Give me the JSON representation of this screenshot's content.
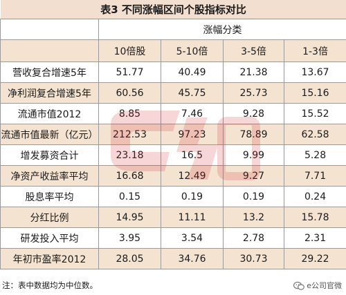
{
  "title": "表3 不同涨幅区间个股指标对比",
  "group_header": "涨幅分类",
  "columns": [
    "10倍股",
    "5-10倍",
    "3-5倍",
    "1-3倍"
  ],
  "rows": [
    {
      "label": "营收复合增速5年",
      "values": [
        "51.77",
        "40.49",
        "21.38",
        "13.67"
      ]
    },
    {
      "label": "净利润复合增速5年",
      "values": [
        "60.56",
        "45.75",
        "25.73",
        "15.16"
      ]
    },
    {
      "label": "流通市值2012",
      "values": [
        "8.85",
        "7.46",
        "9.28",
        "15.52"
      ]
    },
    {
      "label": "流通市值最新（亿元）",
      "values": [
        "212.53",
        "97.23",
        "78.89",
        "62.58"
      ]
    },
    {
      "label": "增发募资合计",
      "values": [
        "23.18",
        "16.5",
        "9.99",
        "5.28"
      ]
    },
    {
      "label": "净资产收益率平均",
      "values": [
        "16.68",
        "12.49",
        "9.27",
        "7.71"
      ]
    },
    {
      "label": "股息率平均",
      "values": [
        "0.15",
        "0.19",
        "0.19",
        "0.24"
      ]
    },
    {
      "label": "分红比例",
      "values": [
        "14.95",
        "11.11",
        "13.2",
        "15.78"
      ]
    },
    {
      "label": "研发投入平均",
      "values": [
        "3.95",
        "3.54",
        "2.78",
        "2.31"
      ]
    },
    {
      "label": "年初市盈率2012",
      "values": [
        "28.05",
        "34.76",
        "30.73",
        "29.22"
      ]
    }
  ],
  "note": "注：表中数据均为中位数。",
  "brand": "e公司官微",
  "colors": {
    "shade": "#f5e3d2",
    "title_bg": "#f3dfcf",
    "border": "#9a9a9a",
    "watermark": "#d0202a"
  },
  "icons": {
    "brand": "wechat-channel-icon",
    "watermark": "e-company-watermark"
  }
}
